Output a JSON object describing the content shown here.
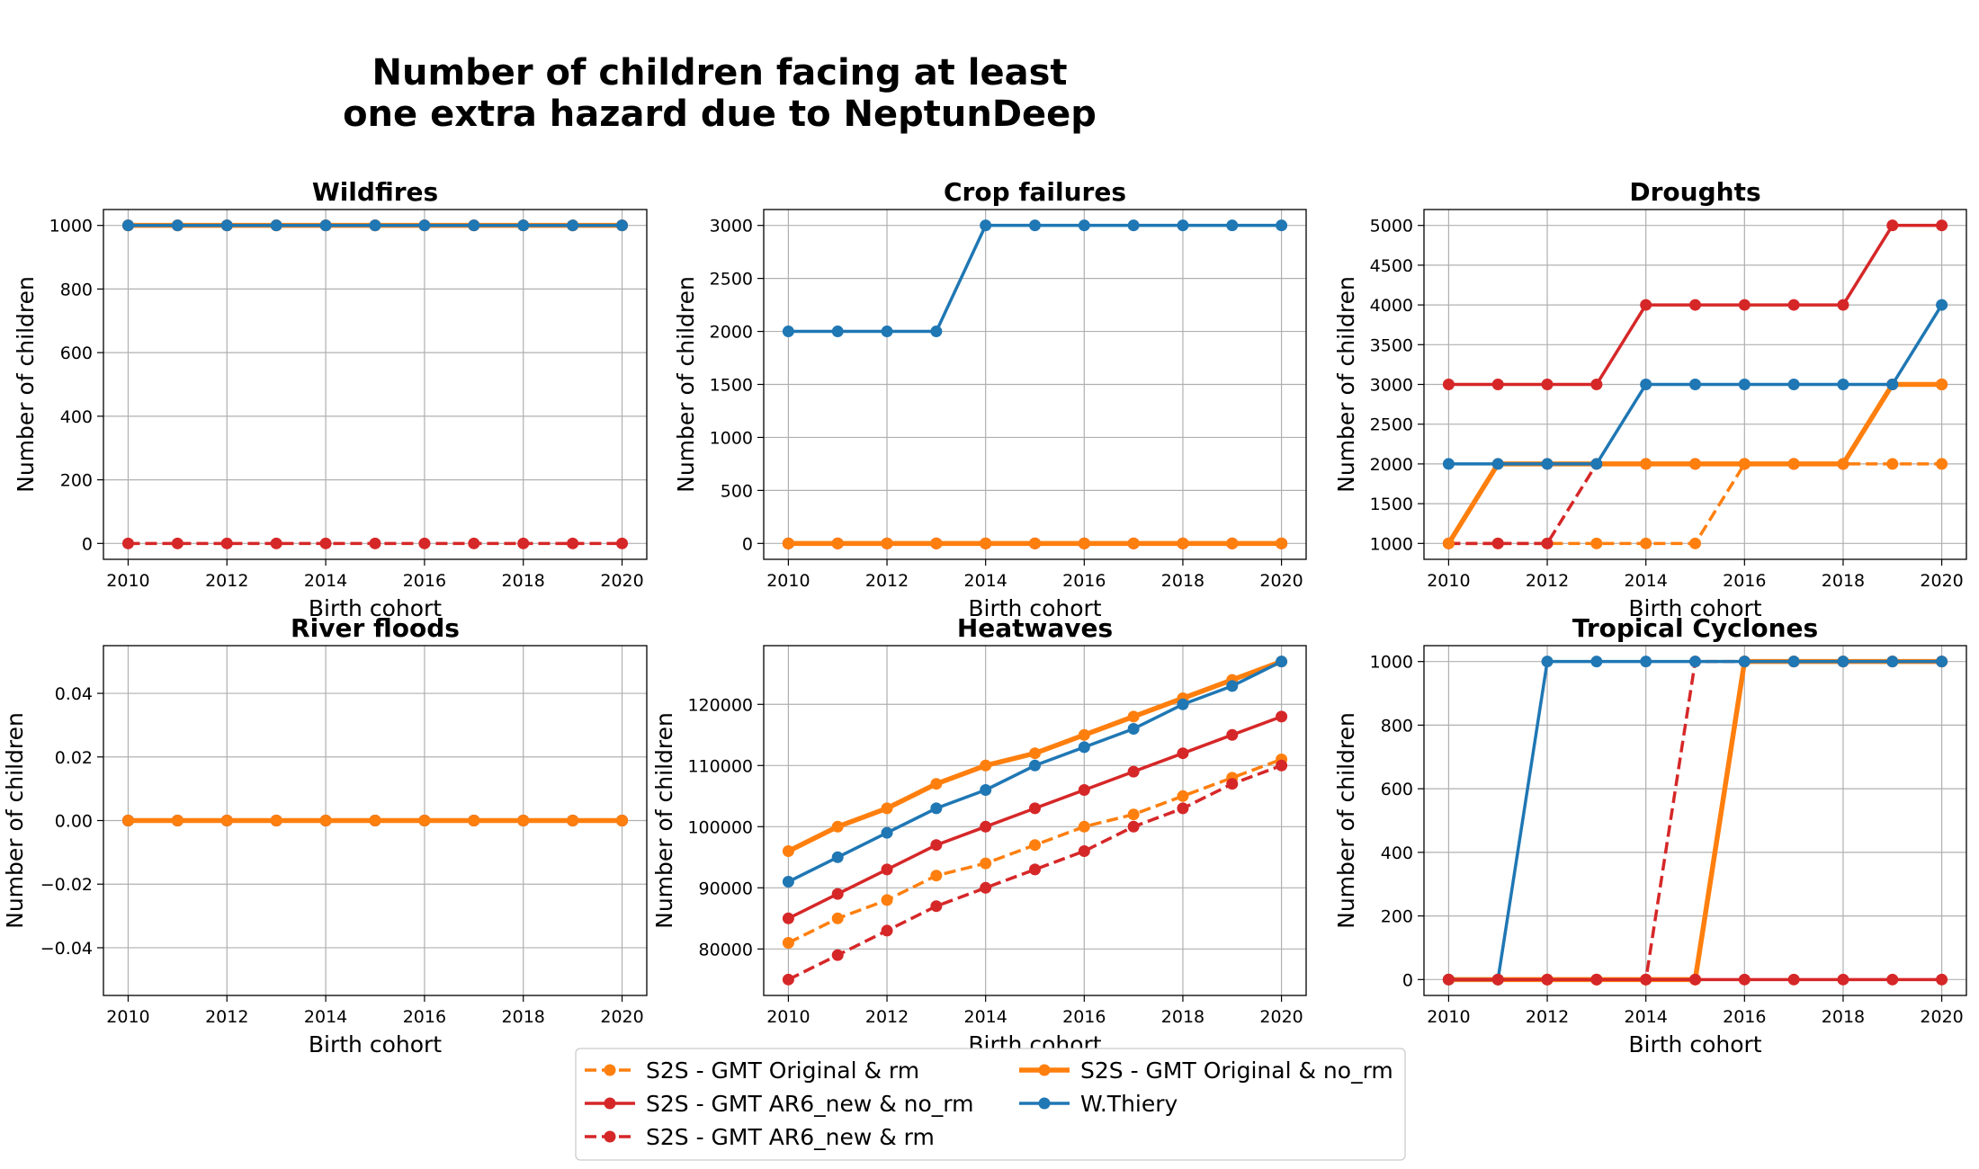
{
  "figure": {
    "title_line1": "Number of children facing at least",
    "title_line2": "one extra hazard due to NeptunDeep"
  },
  "legend": [
    {
      "label": "S2S - GMT Original & rm",
      "color": "#ff7f0e",
      "style": "dashed"
    },
    {
      "label": "S2S - GMT AR6_new & no_rm",
      "color": "#d62728",
      "style": "solid"
    },
    {
      "label": "S2S - GMT AR6_new & rm",
      "color": "#d62728",
      "style": "dashed"
    },
    {
      "label": "S2S - GMT Original & no_rm",
      "color": "#ff7f0e",
      "style": "thick"
    },
    {
      "label": "W.Thiery",
      "color": "#1f77b4",
      "style": "solid"
    }
  ],
  "chart_data": [
    {
      "type": "line",
      "title": "Wildfires",
      "xlabel": "Birth cohort",
      "ylabel": "Number of children",
      "x": [
        2010,
        2011,
        2012,
        2013,
        2014,
        2015,
        2016,
        2017,
        2018,
        2019,
        2020
      ],
      "xticks": [
        "2010",
        "2012",
        "2014",
        "2016",
        "2018",
        "2020"
      ],
      "yticks": [
        "0",
        "200",
        "400",
        "600",
        "800",
        "1000"
      ],
      "ylim": [
        -50,
        1050
      ],
      "grid": true,
      "series": [
        {
          "name": "S2S - GMT Original & rm",
          "values": [
            1000,
            1000,
            1000,
            1000,
            1000,
            1000,
            1000,
            1000,
            1000,
            1000,
            1000
          ]
        },
        {
          "name": "S2S - GMT AR6_new & no_rm",
          "values": [
            1000,
            1000,
            1000,
            1000,
            1000,
            1000,
            1000,
            1000,
            1000,
            1000,
            1000
          ]
        },
        {
          "name": "S2S - GMT AR6_new & rm",
          "values": [
            0,
            0,
            0,
            0,
            0,
            0,
            0,
            0,
            0,
            0,
            0
          ]
        },
        {
          "name": "S2S - GMT Original & no_rm",
          "values": [
            1000,
            1000,
            1000,
            1000,
            1000,
            1000,
            1000,
            1000,
            1000,
            1000,
            1000
          ]
        },
        {
          "name": "W.Thiery",
          "values": [
            1000,
            1000,
            1000,
            1000,
            1000,
            1000,
            1000,
            1000,
            1000,
            1000,
            1000
          ]
        }
      ]
    },
    {
      "type": "line",
      "title": "Crop failures",
      "xlabel": "Birth cohort",
      "ylabel": "Number of children",
      "x": [
        2010,
        2011,
        2012,
        2013,
        2014,
        2015,
        2016,
        2017,
        2018,
        2019,
        2020
      ],
      "xticks": [
        "2010",
        "2012",
        "2014",
        "2016",
        "2018",
        "2020"
      ],
      "yticks": [
        "0",
        "500",
        "1000",
        "1500",
        "2000",
        "2500",
        "3000"
      ],
      "ylim": [
        -150,
        3150
      ],
      "grid": true,
      "series": [
        {
          "name": "S2S - GMT Original & rm",
          "values": [
            0,
            0,
            0,
            0,
            0,
            0,
            0,
            0,
            0,
            0,
            0
          ]
        },
        {
          "name": "S2S - GMT AR6_new & no_rm",
          "values": [
            0,
            0,
            0,
            0,
            0,
            0,
            0,
            0,
            0,
            0,
            0
          ]
        },
        {
          "name": "S2S - GMT AR6_new & rm",
          "values": [
            0,
            0,
            0,
            0,
            0,
            0,
            0,
            0,
            0,
            0,
            0
          ]
        },
        {
          "name": "S2S - GMT Original & no_rm",
          "values": [
            0,
            0,
            0,
            0,
            0,
            0,
            0,
            0,
            0,
            0,
            0
          ]
        },
        {
          "name": "W.Thiery",
          "values": [
            2000,
            2000,
            2000,
            2000,
            3000,
            3000,
            3000,
            3000,
            3000,
            3000,
            3000
          ]
        }
      ]
    },
    {
      "type": "line",
      "title": "Droughts",
      "xlabel": "Birth cohort",
      "ylabel": "Number of children",
      "x": [
        2010,
        2011,
        2012,
        2013,
        2014,
        2015,
        2016,
        2017,
        2018,
        2019,
        2020
      ],
      "xticks": [
        "2010",
        "2012",
        "2014",
        "2016",
        "2018",
        "2020"
      ],
      "yticks": [
        "1000",
        "1500",
        "2000",
        "2500",
        "3000",
        "3500",
        "4000",
        "4500",
        "5000"
      ],
      "ylim": [
        800,
        5200
      ],
      "grid": true,
      "series": [
        {
          "name": "S2S - GMT Original & rm",
          "values": [
            1000,
            1000,
            1000,
            1000,
            1000,
            1000,
            2000,
            2000,
            2000,
            2000,
            2000
          ]
        },
        {
          "name": "S2S - GMT AR6_new & no_rm",
          "values": [
            3000,
            3000,
            3000,
            3000,
            4000,
            4000,
            4000,
            4000,
            4000,
            5000,
            5000
          ]
        },
        {
          "name": "S2S - GMT AR6_new & rm",
          "values": [
            1000,
            1000,
            1000,
            2000,
            2000,
            2000,
            2000,
            2000,
            2000,
            3000,
            3000
          ]
        },
        {
          "name": "S2S - GMT Original & no_rm",
          "values": [
            1000,
            2000,
            2000,
            2000,
            2000,
            2000,
            2000,
            2000,
            2000,
            3000,
            3000
          ]
        },
        {
          "name": "W.Thiery",
          "values": [
            2000,
            2000,
            2000,
            2000,
            3000,
            3000,
            3000,
            3000,
            3000,
            3000,
            4000
          ]
        }
      ]
    },
    {
      "type": "line",
      "title": "River floods",
      "xlabel": "Birth cohort",
      "ylabel": "Number of children",
      "x": [
        2010,
        2011,
        2012,
        2013,
        2014,
        2015,
        2016,
        2017,
        2018,
        2019,
        2020
      ],
      "xticks": [
        "2010",
        "2012",
        "2014",
        "2016",
        "2018",
        "2020"
      ],
      "yticks": [
        "−0.04",
        "−0.02",
        "0.00",
        "0.02",
        "0.04"
      ],
      "ytick_values": [
        -0.04,
        -0.02,
        0.0,
        0.02,
        0.04
      ],
      "ylim": [
        -0.055,
        0.055
      ],
      "grid": true,
      "series": [
        {
          "name": "S2S - GMT Original & rm",
          "values": [
            0,
            0,
            0,
            0,
            0,
            0,
            0,
            0,
            0,
            0,
            0
          ]
        },
        {
          "name": "S2S - GMT AR6_new & no_rm",
          "values": [
            0,
            0,
            0,
            0,
            0,
            0,
            0,
            0,
            0,
            0,
            0
          ]
        },
        {
          "name": "S2S - GMT AR6_new & rm",
          "values": [
            0,
            0,
            0,
            0,
            0,
            0,
            0,
            0,
            0,
            0,
            0
          ]
        },
        {
          "name": "W.Thiery",
          "values": [
            0,
            0,
            0,
            0,
            0,
            0,
            0,
            0,
            0,
            0,
            0
          ]
        },
        {
          "name": "S2S - GMT Original & no_rm",
          "values": [
            0,
            0,
            0,
            0,
            0,
            0,
            0,
            0,
            0,
            0,
            0
          ]
        }
      ]
    },
    {
      "type": "line",
      "title": "Heatwaves",
      "xlabel": "Birth cohort",
      "ylabel": "Number of children",
      "x": [
        2010,
        2011,
        2012,
        2013,
        2014,
        2015,
        2016,
        2017,
        2018,
        2019,
        2020
      ],
      "xticks": [
        "2010",
        "2012",
        "2014",
        "2016",
        "2018",
        "2020"
      ],
      "yticks": [
        "80000",
        "90000",
        "100000",
        "110000",
        "120000"
      ],
      "ytick_values": [
        80000,
        90000,
        100000,
        110000,
        120000
      ],
      "ylim": [
        72400,
        129600
      ],
      "grid": true,
      "series": [
        {
          "name": "S2S - GMT Original & rm",
          "values": [
            81000,
            85000,
            88000,
            92000,
            94000,
            97000,
            100000,
            102000,
            105000,
            108000,
            111000
          ]
        },
        {
          "name": "S2S - GMT AR6_new & no_rm",
          "values": [
            85000,
            89000,
            93000,
            97000,
            100000,
            103000,
            106000,
            109000,
            112000,
            115000,
            118000
          ]
        },
        {
          "name": "S2S - GMT AR6_new & rm",
          "values": [
            75000,
            79000,
            83000,
            87000,
            90000,
            93000,
            96000,
            100000,
            103000,
            107000,
            110000
          ]
        },
        {
          "name": "S2S - GMT Original & no_rm",
          "values": [
            96000,
            100000,
            103000,
            107000,
            110000,
            112000,
            115000,
            118000,
            121000,
            124000,
            127000
          ]
        },
        {
          "name": "W.Thiery",
          "values": [
            91000,
            95000,
            99000,
            103000,
            106000,
            110000,
            113000,
            116000,
            120000,
            123000,
            127000
          ]
        }
      ]
    },
    {
      "type": "line",
      "title": "Tropical Cyclones",
      "xlabel": "Birth cohort",
      "ylabel": "Number of children",
      "x": [
        2010,
        2011,
        2012,
        2013,
        2014,
        2015,
        2016,
        2017,
        2018,
        2019,
        2020
      ],
      "xticks": [
        "2010",
        "2012",
        "2014",
        "2016",
        "2018",
        "2020"
      ],
      "yticks": [
        "0",
        "200",
        "400",
        "600",
        "800",
        "1000"
      ],
      "ylim": [
        -50,
        1050
      ],
      "grid": true,
      "series": [
        {
          "name": "S2S - GMT Original & rm",
          "values": [
            0,
            0,
            0,
            0,
            0,
            0,
            1000,
            1000,
            1000,
            1000,
            1000
          ]
        },
        {
          "name": "S2S - GMT AR6_new & rm",
          "values": [
            0,
            0,
            0,
            0,
            0,
            1000,
            1000,
            1000,
            1000,
            1000,
            1000
          ]
        },
        {
          "name": "S2S - GMT Original & no_rm",
          "values": [
            0,
            0,
            0,
            0,
            0,
            0,
            1000,
            1000,
            1000,
            1000,
            1000
          ]
        },
        {
          "name": "W.Thiery",
          "values": [
            0,
            0,
            1000,
            1000,
            1000,
            1000,
            1000,
            1000,
            1000,
            1000,
            1000
          ]
        },
        {
          "name": "S2S - GMT AR6_new & no_rm",
          "values": [
            0,
            0,
            0,
            0,
            0,
            0,
            0,
            0,
            0,
            0,
            0
          ]
        }
      ]
    }
  ]
}
